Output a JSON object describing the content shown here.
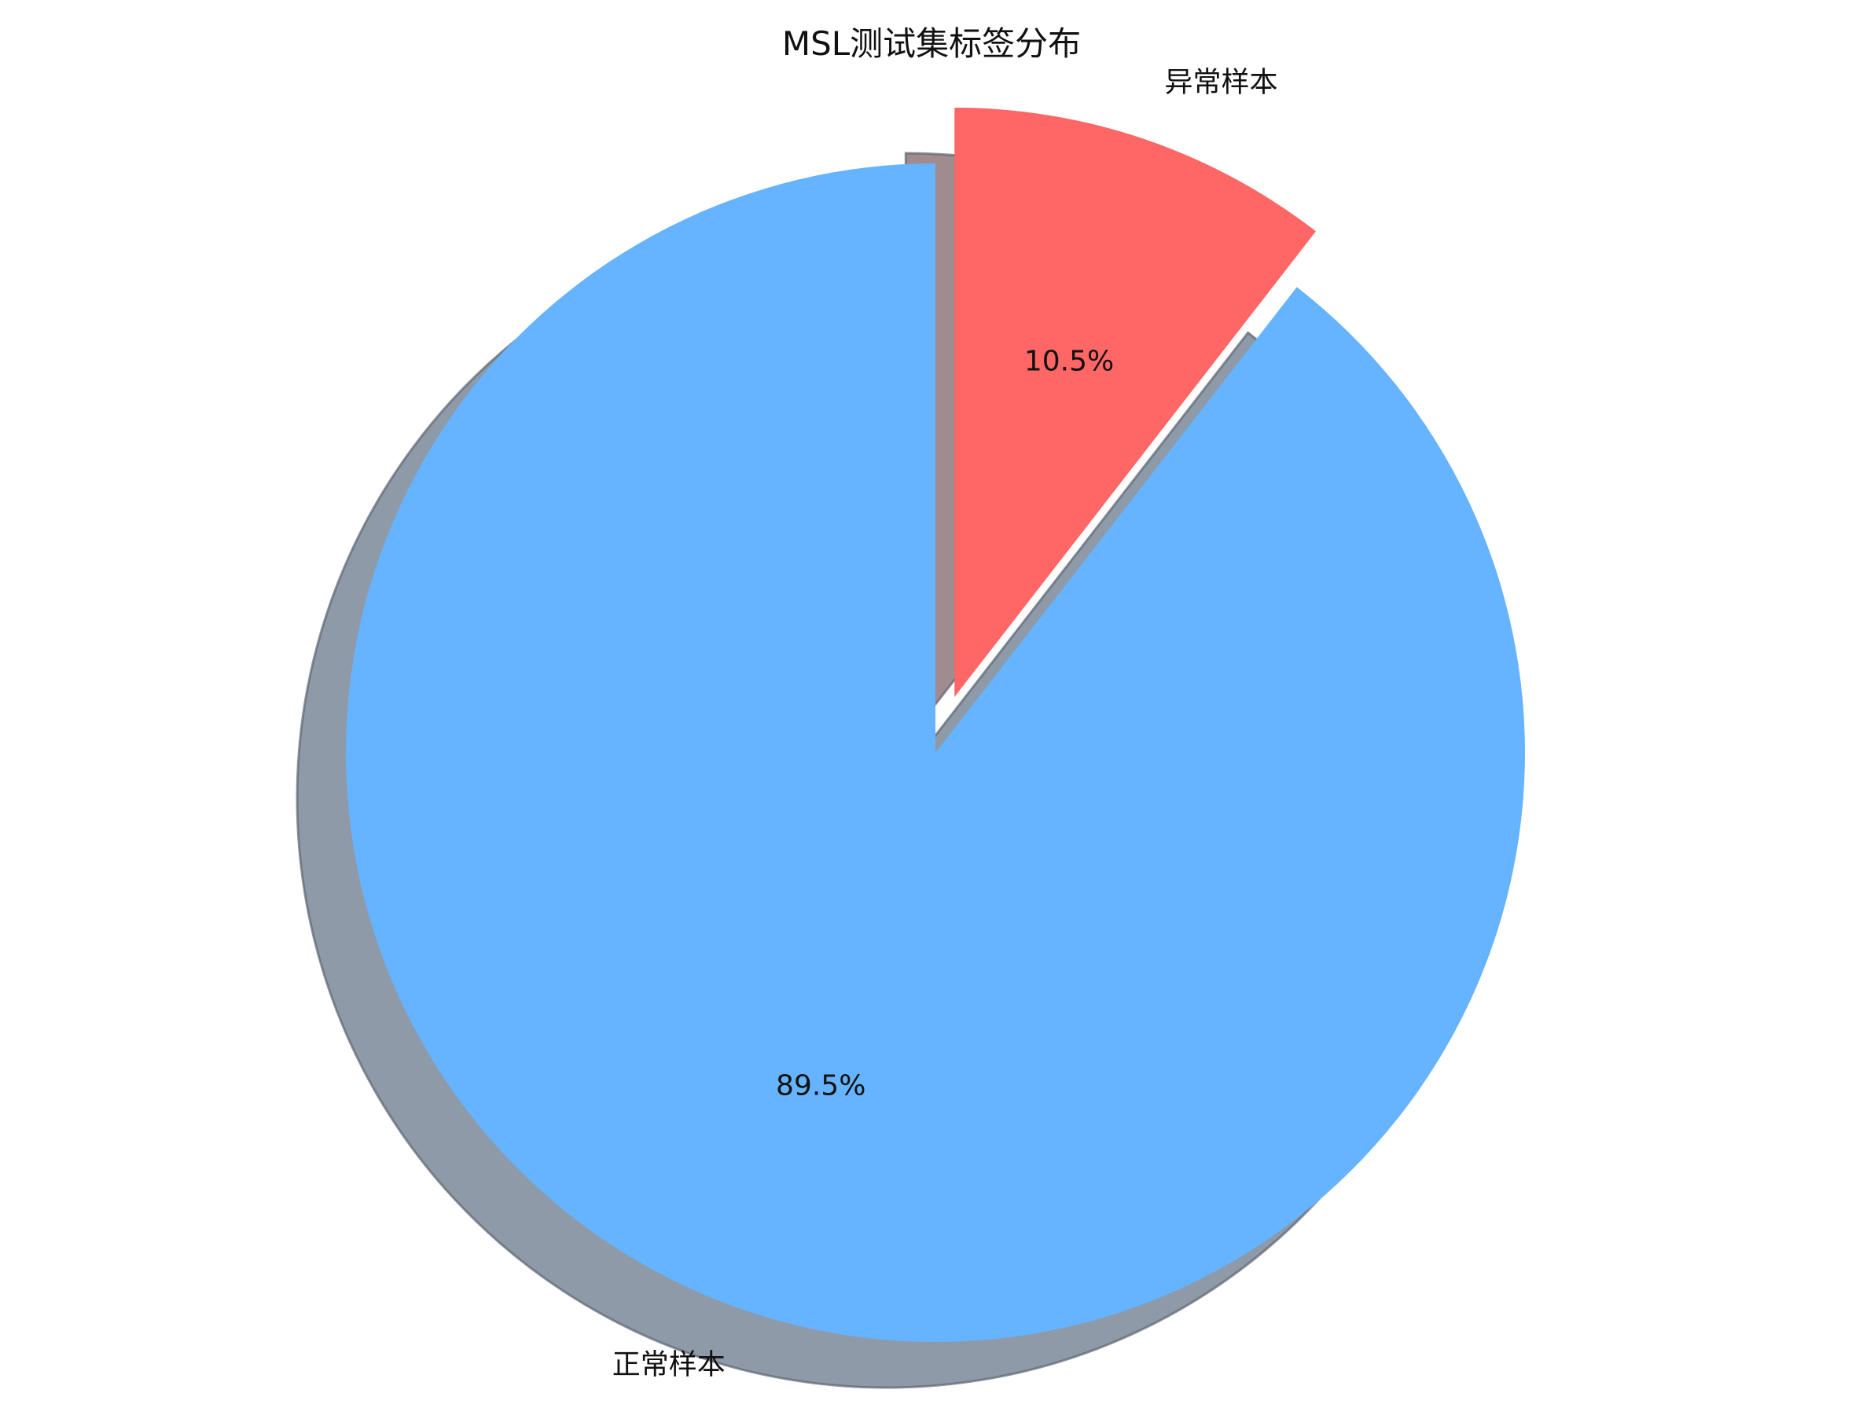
{
  "chart_data": {
    "type": "pie",
    "title": "MSL测试集标签分布",
    "start_angle_deg": 90,
    "direction": "clockwise",
    "shadow": true,
    "slices": [
      {
        "label": "异常样本",
        "value": 10.5,
        "pct_label": "10.5%",
        "color": "#ff6666",
        "exploded": true
      },
      {
        "label": "正常样本",
        "value": 89.5,
        "pct_label": "89.5%",
        "color": "#66b3ff",
        "exploded": false
      }
    ]
  }
}
